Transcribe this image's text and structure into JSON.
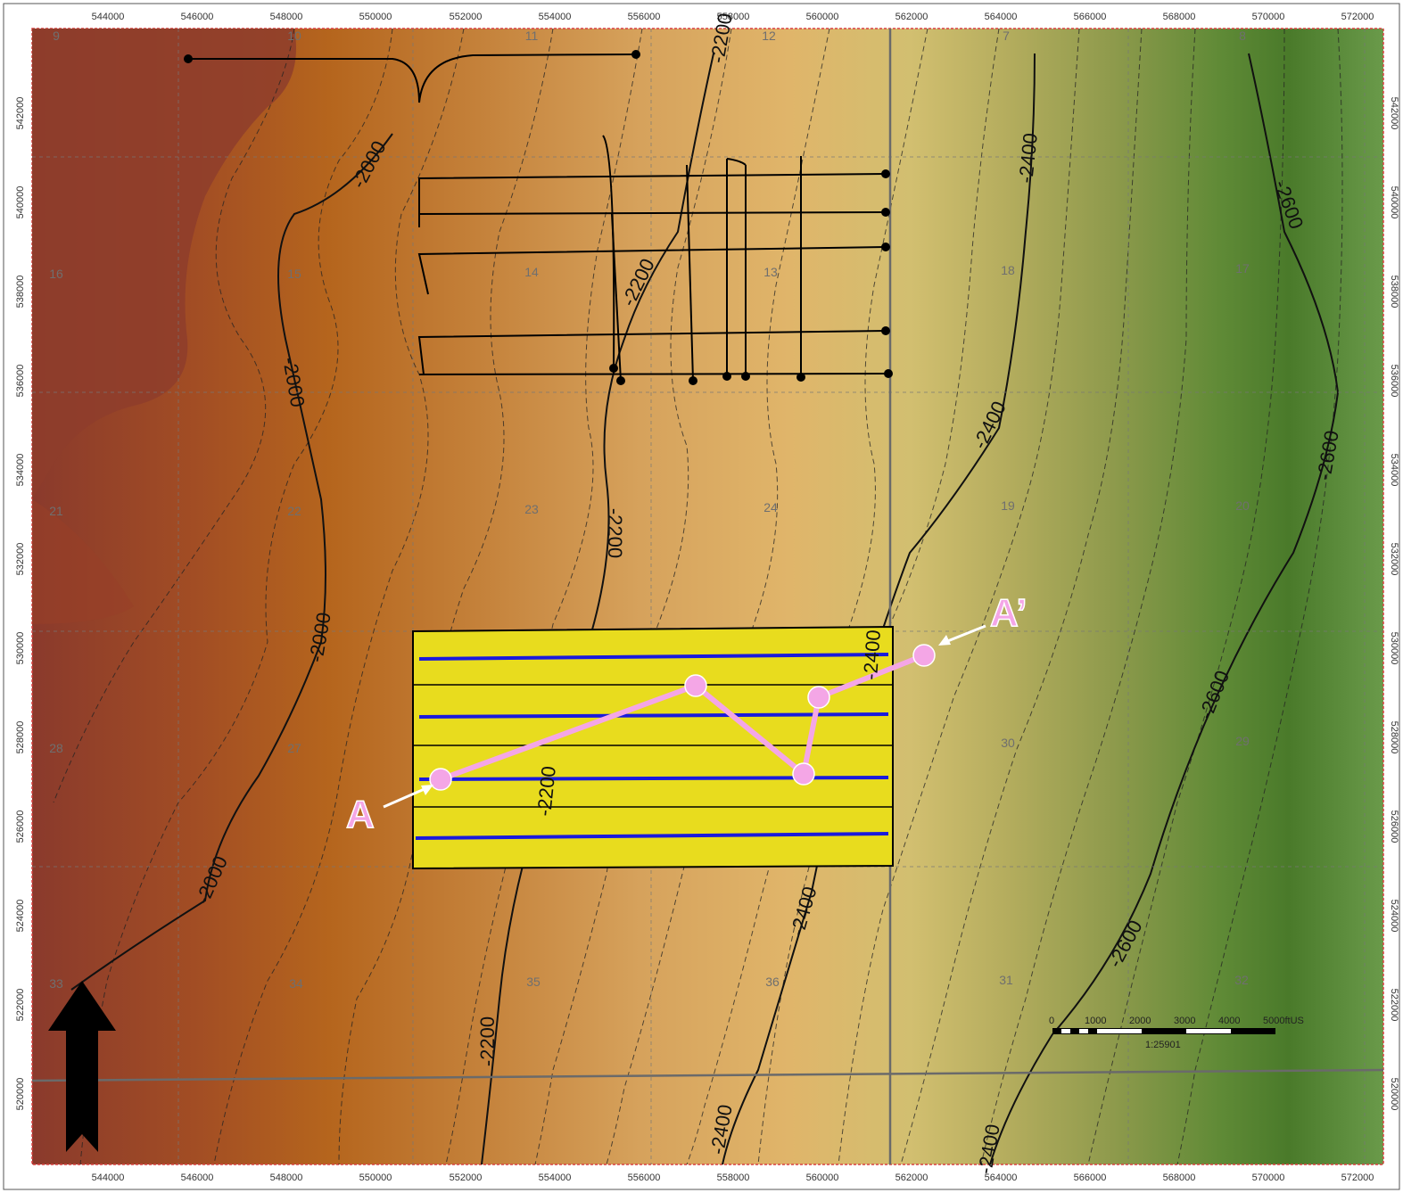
{
  "x_axis": {
    "labels": [
      "544000",
      "546000",
      "548000",
      "550000",
      "552000",
      "554000",
      "556000",
      "558000",
      "560000",
      "562000",
      "564000",
      "566000",
      "568000",
      "570000",
      "572000"
    ]
  },
  "y_axis": {
    "labels": [
      "542000",
      "540000",
      "538000",
      "536000",
      "534000",
      "532000",
      "530000",
      "528000",
      "526000",
      "524000",
      "522000",
      "520000"
    ]
  },
  "sections": [
    "9",
    "10",
    "11",
    "12",
    "7",
    "8",
    "16",
    "15",
    "14",
    "13",
    "18",
    "17",
    "21",
    "22",
    "23",
    "24",
    "19",
    "20",
    "28",
    "27",
    "30",
    "29",
    "33",
    "34",
    "35",
    "36",
    "31",
    "32"
  ],
  "contour_labels": [
    "-2000",
    "-2000",
    "-2000",
    "-2000",
    "-2000",
    "-2200",
    "-2200",
    "-2200",
    "-2200",
    "-2200",
    "-2400",
    "-2400",
    "-2400",
    "-2600",
    "-2600",
    "-2600",
    "-2600",
    "-2200",
    "-2400",
    "-2400",
    "-2400",
    "-2600"
  ],
  "cross_section": {
    "start_label": "A",
    "end_label": "A’",
    "color": "#f4a6e6"
  },
  "scale_bar": {
    "ticks": [
      "0",
      "1000",
      "2000",
      "3000",
      "4000",
      "5000ftUS"
    ],
    "ratio": "1:25901"
  },
  "colors": {
    "west": "#8a3a2a",
    "orange": "#b5651d",
    "tan": "#dcb168",
    "olive": "#a8a85c",
    "green": "#4a7a2a",
    "survey_fill": "#e8dc1e",
    "lines": "#1a1adc"
  },
  "icons": {
    "north_arrow": "north-arrow-icon"
  }
}
